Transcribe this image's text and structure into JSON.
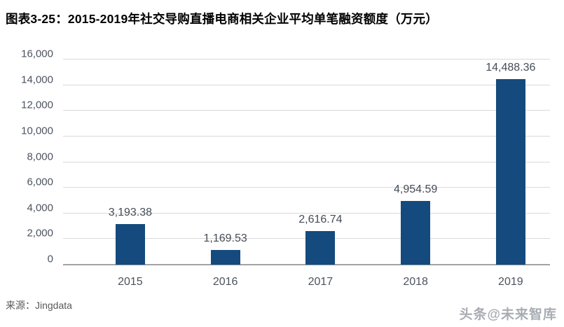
{
  "header": {
    "title": "图表3-25：2015-2019年社交导购直播电商相关企业平均单笔融资额度（万元）"
  },
  "chart_data": {
    "type": "bar",
    "title": "2015-2019年社交导购直播电商相关企业平均单笔融资额度（万元）",
    "categories": [
      "2015",
      "2016",
      "2017",
      "2018",
      "2019"
    ],
    "values": [
      3193.38,
      1169.53,
      2616.74,
      4954.59,
      14488.36
    ],
    "value_labels": [
      "3,193.38",
      "1,169.53",
      "2,616.74",
      "4,954.59",
      "14,488.36"
    ],
    "xlabel": "",
    "ylabel": "",
    "ylim": [
      0,
      16000
    ],
    "ytick_interval": 2000,
    "ytick_labels": [
      "0",
      "2,000",
      "4,000",
      "6,000",
      "8,000",
      "10,000",
      "12,000",
      "14,000",
      "16,000"
    ],
    "grid": true,
    "legend": "none",
    "unit": "万元",
    "colors": {
      "bar": "#144A7D",
      "gridline": "#d9d9d9",
      "axis_line": "#a3a3a3",
      "tick_text": "#4c535e",
      "value_label_text": "#454c57"
    }
  },
  "footer": {
    "source": "来源：Jingdata",
    "watermark": "头条@未来智库"
  }
}
